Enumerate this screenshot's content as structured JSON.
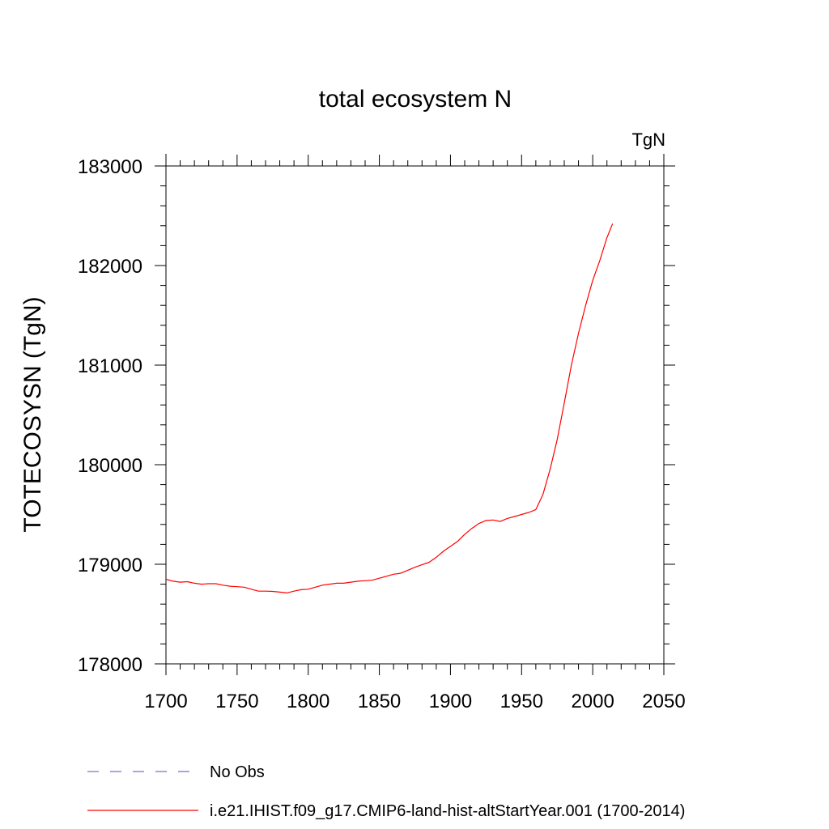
{
  "chart_data": {
    "type": "line",
    "title": "total ecosystem N",
    "units_label": "TgN",
    "ylabel": "TOTECOSYSN  (TgN)",
    "xlabel": "",
    "xlim": [
      1700,
      2050
    ],
    "ylim": [
      178000,
      183000
    ],
    "x_ticks": [
      1700,
      1750,
      1800,
      1850,
      1900,
      1950,
      2000,
      2050
    ],
    "y_ticks": [
      178000,
      179000,
      180000,
      181000,
      182000,
      183000
    ],
    "x_minor_step": 10,
    "y_minor_step": 200,
    "grid": false,
    "legend_position": "bottom",
    "legend": [
      {
        "label": "No Obs",
        "color": "#7b6fc6",
        "dash": "dashed"
      },
      {
        "label": "i.e21.IHIST.f09_g17.CMIP6-land-hist-altStartYear.001 (1700-2014)",
        "color": "#ff0000",
        "dash": "solid"
      }
    ],
    "series": [
      {
        "name": "i.e21.IHIST.f09_g17.CMIP6-land-hist-altStartYear.001 (1700-2014)",
        "color": "#ff0000",
        "x": [
          1700,
          1705,
          1710,
          1715,
          1720,
          1725,
          1730,
          1735,
          1740,
          1745,
          1750,
          1755,
          1760,
          1765,
          1770,
          1775,
          1780,
          1785,
          1790,
          1795,
          1800,
          1805,
          1810,
          1815,
          1820,
          1825,
          1830,
          1835,
          1840,
          1845,
          1850,
          1855,
          1860,
          1865,
          1870,
          1875,
          1880,
          1885,
          1890,
          1895,
          1900,
          1905,
          1910,
          1915,
          1920,
          1925,
          1930,
          1935,
          1940,
          1945,
          1950,
          1955,
          1960,
          1965,
          1970,
          1975,
          1980,
          1985,
          1990,
          1995,
          2000,
          2005,
          2010,
          2014
        ],
        "values": [
          178850,
          178830,
          178820,
          178825,
          178810,
          178800,
          178805,
          178805,
          178790,
          178780,
          178775,
          178770,
          178750,
          178730,
          178730,
          178728,
          178720,
          178712,
          178730,
          178745,
          178750,
          178770,
          178790,
          178800,
          178810,
          178810,
          178820,
          178830,
          178835,
          178840,
          178860,
          178880,
          178900,
          178910,
          178940,
          178970,
          178995,
          179020,
          179070,
          179130,
          179180,
          179230,
          179300,
          179360,
          179410,
          179440,
          179445,
          179430,
          179460,
          179480,
          179500,
          179520,
          179550,
          179700,
          179950,
          180250,
          180620,
          181000,
          181320,
          181600,
          181850,
          182050,
          182280,
          182420
        ]
      }
    ]
  }
}
